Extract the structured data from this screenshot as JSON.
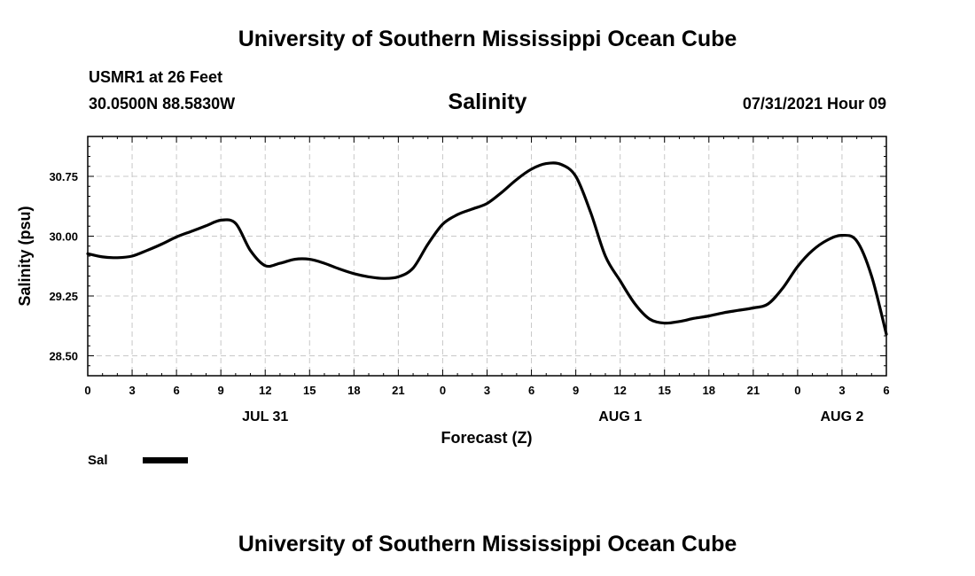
{
  "header": {
    "title": "University of Southern Mississippi Ocean Cube",
    "station": "USMR1 at 26 Feet",
    "coordinates": "30.0500N  88.5830W",
    "chart_title": "Salinity",
    "datetime": "07/31/2021 Hour 09"
  },
  "footer": {
    "title": "University of Southern Mississippi Ocean Cube"
  },
  "colors": {
    "line": "#000000",
    "grid": "#c8c8c8"
  },
  "chart_data": {
    "type": "line",
    "title": "Salinity",
    "xlabel": "Forecast (Z)",
    "ylabel": "Salinity (psu)",
    "xlim": [
      0,
      54
    ],
    "ylim": [
      28.25,
      31.25
    ],
    "y_ticks": [
      28.5,
      29.25,
      30.0,
      30.75
    ],
    "y_tick_labels": [
      "28.50",
      "29.25",
      "30.00",
      "30.75"
    ],
    "x_ticks": [
      0,
      3,
      6,
      9,
      12,
      15,
      18,
      21,
      24,
      27,
      30,
      33,
      36,
      39,
      42,
      45,
      48,
      51,
      54
    ],
    "x_tick_labels": [
      "0",
      "3",
      "6",
      "9",
      "12",
      "15",
      "18",
      "21",
      "0",
      "3",
      "6",
      "9",
      "12",
      "15",
      "18",
      "21",
      "0",
      "3",
      "6"
    ],
    "date_labels": [
      {
        "x": 12,
        "label": "JUL 31"
      },
      {
        "x": 36,
        "label": "AUG 1"
      },
      {
        "x": 51,
        "label": "AUG 2"
      }
    ],
    "grid": true,
    "legend": {
      "position": "bottom-left",
      "entries": [
        "Sal"
      ]
    },
    "series": [
      {
        "name": "Sal",
        "x": [
          0,
          1,
          2,
          3,
          4,
          5,
          6,
          7,
          8,
          9,
          10,
          11,
          12,
          13,
          14,
          15,
          16,
          17,
          18,
          19,
          20,
          21,
          22,
          23,
          24,
          25,
          26,
          27,
          28,
          29,
          30,
          31,
          32,
          33,
          34,
          35,
          36,
          37,
          38,
          39,
          40,
          41,
          42,
          43,
          44,
          45,
          46,
          47,
          48,
          49,
          50,
          51,
          52,
          53,
          54
        ],
        "values": [
          29.78,
          29.74,
          29.73,
          29.75,
          29.82,
          29.9,
          29.99,
          30.06,
          30.13,
          30.2,
          30.16,
          29.82,
          29.63,
          29.66,
          29.71,
          29.71,
          29.66,
          29.59,
          29.53,
          29.49,
          29.47,
          29.49,
          29.6,
          29.9,
          30.15,
          30.27,
          30.34,
          30.41,
          30.55,
          30.71,
          30.84,
          30.91,
          30.9,
          30.75,
          30.3,
          29.75,
          29.44,
          29.15,
          28.96,
          28.91,
          28.93,
          28.97,
          29.0,
          29.04,
          29.07,
          29.1,
          29.15,
          29.35,
          29.62,
          29.82,
          29.95,
          30.01,
          29.94,
          29.5,
          28.77
        ]
      }
    ]
  }
}
